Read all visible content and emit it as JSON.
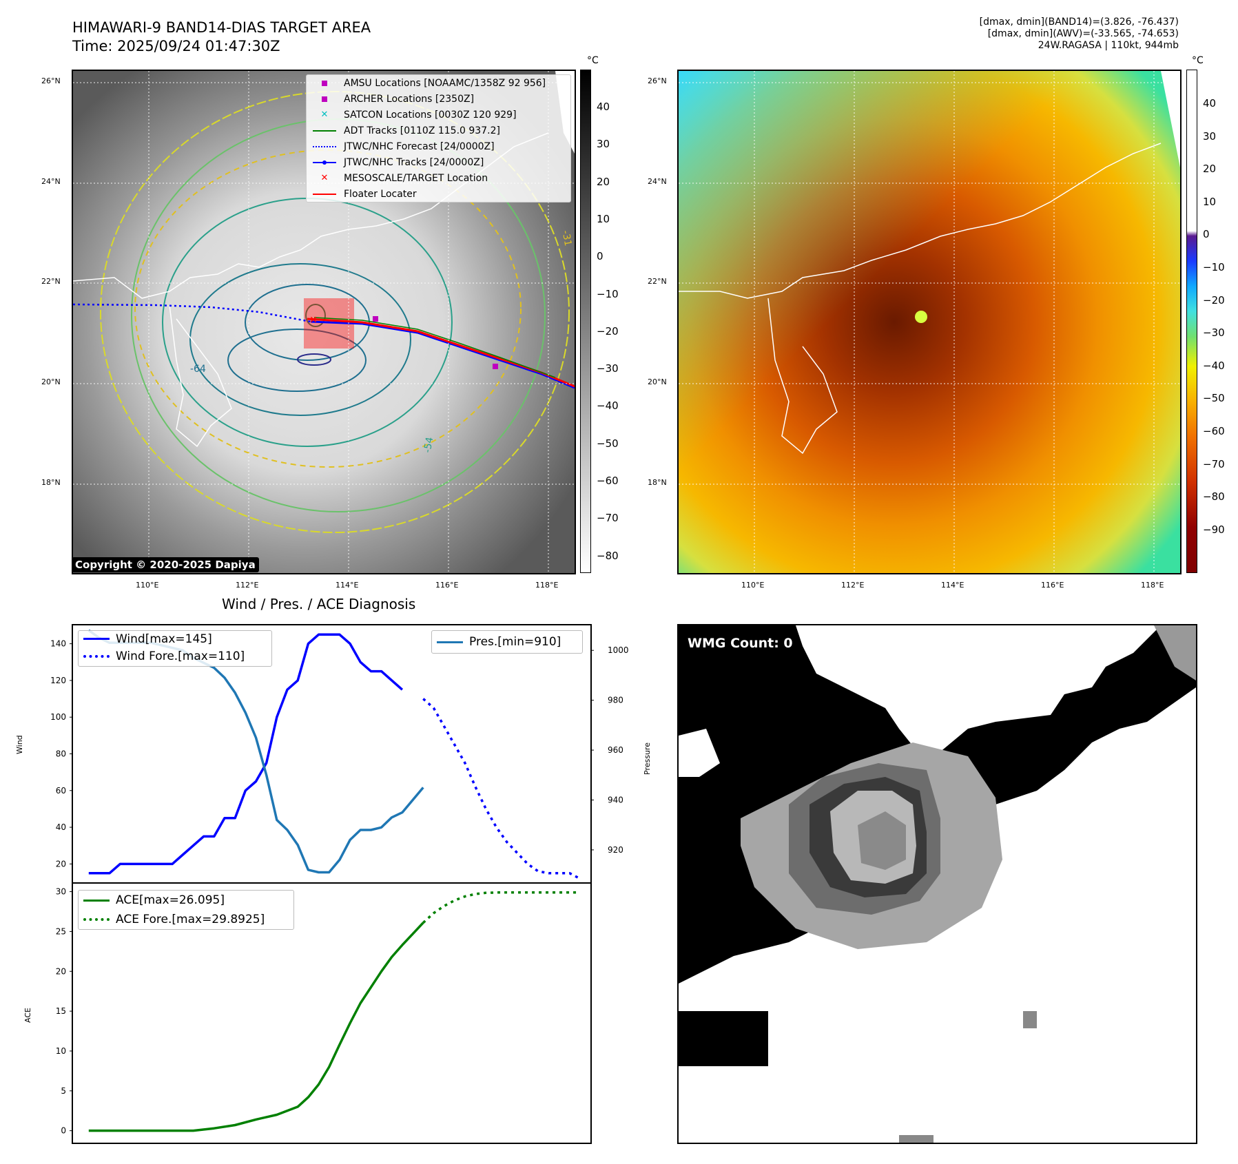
{
  "header": {
    "title_line1": "HIMAWARI-9 BAND14-DIAS TARGET AREA",
    "title_line2": "Time: 2025/09/24 01:47:30Z",
    "info_line1": "[dmax, dmin](BAND14)=(3.826, -76.437)",
    "info_line2": "[dmax, dmin](AWV)=(-33.565, -74.653)",
    "info_line3": "24W.RAGASA | 110kt, 944mb"
  },
  "map": {
    "lat_labels": [
      "26°N",
      "24°N",
      "22°N",
      "20°N",
      "18°N"
    ],
    "lon_labels": [
      "110°E",
      "112°E",
      "114°E",
      "116°E",
      "118°E"
    ],
    "unit": "°C",
    "colorbar_left_ticks": [
      "40",
      "30",
      "20",
      "10",
      "0",
      "−10",
      "−20",
      "−30",
      "−40",
      "−50",
      "−60",
      "−70",
      "−80"
    ],
    "colorbar_right_ticks": [
      "40",
      "30",
      "20",
      "10",
      "0",
      "−10",
      "−20",
      "−30",
      "−40",
      "−50",
      "−60",
      "−70",
      "−80",
      "−90"
    ],
    "copyright": "Copyright © 2020-2025 Dapiya",
    "contour_labels": [
      "-54",
      "-64",
      "-31",
      "-64",
      "-54",
      "-31"
    ],
    "colors": {
      "amsu": "#bf00bf",
      "archer": "#bf00bf",
      "satcon": "#00bfbf",
      "adt": "#008000",
      "forecast": "#0000ff",
      "tracks": "#0000ff",
      "target": "#ff0000",
      "floater": "#ff0000"
    }
  },
  "legend": {
    "amsu": "AMSU Locations [NOAAMC/1358Z 92 956]",
    "archer": "ARCHER Locations [2350Z]",
    "satcon": "SATCON Locations [0030Z 120 929]",
    "adt": "ADT Tracks [0110Z 115.0 937.2]",
    "forecast": "JTWC/NHC Forecast [24/0000Z]",
    "tracks": "JTWC/NHC Tracks [24/0000Z]",
    "target": "MESOSCALE/TARGET Location",
    "floater": "Floater Locater"
  },
  "diag": {
    "title": "Wind / Pres. / ACE Diagnosis",
    "wind_label": "Wind[max=145]",
    "wind_fore_label": "Wind Fore.[max=110]",
    "pres_label": "Pres.[min=910]",
    "ace_label": "ACE[max=26.095]",
    "ace_fore_label": "ACE Fore.[max=29.8925]",
    "ylabel_wind": "Wind",
    "ylabel_pres": "Pressure",
    "ylabel_ace": "ACE",
    "wmg": "WMG Count: 0"
  },
  "chart_data": [
    {
      "type": "line",
      "title": "Wind / Pres. / ACE Diagnosis",
      "ylabel": "Wind",
      "ylim": [
        10,
        150
      ],
      "yticks": [
        20,
        40,
        60,
        80,
        100,
        120,
        140
      ],
      "series": [
        {
          "name": "Wind[max=145]",
          "color": "#0000ff",
          "style": "solid",
          "x": [
            0,
            1,
            2,
            3,
            4,
            5,
            6,
            7,
            8,
            9,
            10,
            11,
            12,
            13,
            14,
            15,
            16,
            17,
            18,
            19,
            20,
            21,
            22,
            23,
            24,
            25,
            26,
            27,
            28,
            29,
            30
          ],
          "values": [
            15,
            15,
            15,
            20,
            20,
            20,
            20,
            20,
            20,
            25,
            30,
            35,
            35,
            45,
            45,
            60,
            65,
            75,
            100,
            115,
            120,
            140,
            145,
            145,
            145,
            140,
            130,
            125,
            125,
            120,
            115
          ]
        },
        {
          "name": "Wind Fore.[max=110]",
          "color": "#0000ff",
          "style": "dotted",
          "x": [
            32,
            33,
            34,
            35,
            36,
            37,
            38,
            39,
            40,
            41,
            42,
            43,
            44,
            45,
            46,
            47
          ],
          "values": [
            110,
            105,
            95,
            85,
            75,
            62,
            50,
            40,
            32,
            26,
            20,
            16,
            15,
            15,
            15,
            12
          ]
        }
      ]
    },
    {
      "type": "line",
      "ylabel": "Pressure",
      "ylim": [
        907,
        1010
      ],
      "yticks": [
        920,
        940,
        960,
        980,
        1000
      ],
      "series": [
        {
          "name": "Pres.[min=910]",
          "color": "#1f77b4",
          "style": "solid",
          "x": [
            0,
            1,
            2,
            3,
            4,
            5,
            6,
            7,
            8,
            9,
            10,
            11,
            12,
            13,
            14,
            15,
            16,
            17,
            18,
            19,
            20,
            21,
            22,
            23,
            24,
            25,
            26,
            27,
            28,
            29,
            30,
            31,
            32
          ],
          "values": [
            1008,
            1005,
            1003,
            1003,
            1003,
            1003,
            1003,
            1002,
            1001,
            1000,
            997,
            995,
            993,
            989,
            983,
            975,
            965,
            950,
            932,
            928,
            922,
            912,
            911,
            911,
            916,
            924,
            928,
            928,
            929,
            933,
            935,
            940,
            945
          ]
        }
      ]
    },
    {
      "type": "line",
      "ylabel": "ACE",
      "ylim": [
        -1.5,
        31
      ],
      "yticks": [
        0,
        5,
        10,
        15,
        20,
        25,
        30
      ],
      "series": [
        {
          "name": "ACE[max=26.095]",
          "color": "#008000",
          "style": "solid",
          "x": [
            0,
            2,
            4,
            6,
            8,
            10,
            12,
            14,
            16,
            18,
            20,
            21,
            22,
            23,
            24,
            25,
            26,
            27,
            28,
            29,
            30,
            31,
            32
          ],
          "values": [
            0,
            0,
            0,
            0,
            0,
            0,
            0.3,
            0.7,
            1.4,
            2.0,
            3.0,
            4.2,
            5.8,
            8.0,
            10.8,
            13.5,
            16.0,
            18.0,
            20.0,
            21.8,
            23.3,
            24.7,
            26.095
          ]
        },
        {
          "name": "ACE Fore.[max=29.8925]",
          "color": "#008000",
          "style": "dotted",
          "x": [
            32,
            33,
            34,
            35,
            36,
            37,
            38,
            39,
            40,
            41,
            42,
            43,
            44,
            45,
            46,
            47
          ],
          "values": [
            26.095,
            27.3,
            28.2,
            28.9,
            29.4,
            29.7,
            29.85,
            29.89,
            29.89,
            29.89,
            29.89,
            29.89,
            29.89,
            29.89,
            29.89,
            29.89
          ]
        }
      ]
    }
  ]
}
